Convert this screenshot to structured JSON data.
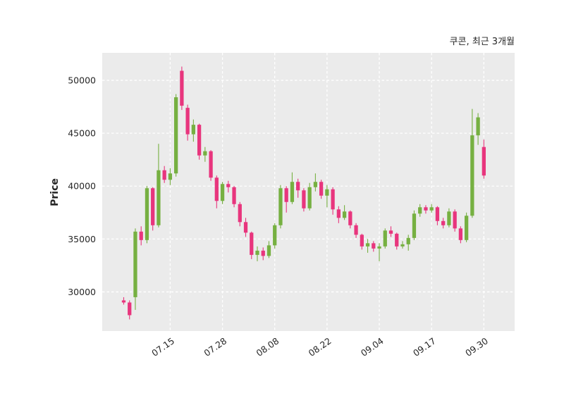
{
  "header": {
    "title": "쿠콘, 최근 3개월"
  },
  "chart_data": {
    "type": "candlestick",
    "title": "쿠콘, 최근 3개월",
    "ylabel": "Price",
    "ylim": [
      26300,
      52600
    ],
    "yticks": [
      30000,
      35000,
      40000,
      45000,
      50000
    ],
    "xtick_labels": [
      "07.15",
      "07.28",
      "08.08",
      "08.22",
      "09.04",
      "09.17",
      "09.30"
    ],
    "xtick_indices": [
      8,
      17,
      26,
      35,
      44,
      53,
      62
    ],
    "grid": true,
    "legend": "none",
    "colors": {
      "up": "#76b041",
      "down": "#e8357d",
      "plot_bg": "#ebebeb",
      "grid": "#ffffff",
      "text": "#262626"
    },
    "candle_format": [
      "open",
      "high",
      "low",
      "close"
    ],
    "candles": [
      [
        29200,
        29500,
        28800,
        29000
      ],
      [
        29000,
        29200,
        27400,
        27800
      ],
      [
        29500,
        36000,
        28300,
        35700
      ],
      [
        35700,
        36200,
        34400,
        34900
      ],
      [
        34900,
        40000,
        34600,
        39800
      ],
      [
        39800,
        39900,
        35800,
        36300
      ],
      [
        36300,
        44000,
        36100,
        41500
      ],
      [
        41500,
        41900,
        40300,
        40600
      ],
      [
        40600,
        41700,
        40100,
        41200
      ],
      [
        41200,
        48700,
        40900,
        48400
      ],
      [
        50900,
        51300,
        47200,
        47600
      ],
      [
        47400,
        47700,
        44300,
        44900
      ],
      [
        44900,
        46300,
        44200,
        45800
      ],
      [
        45800,
        45900,
        42500,
        42900
      ],
      [
        42900,
        43700,
        42300,
        43300
      ],
      [
        43300,
        43400,
        40500,
        40800
      ],
      [
        40800,
        41000,
        37900,
        38600
      ],
      [
        38600,
        40400,
        38300,
        40200
      ],
      [
        40200,
        40500,
        39400,
        39900
      ],
      [
        39900,
        40000,
        38000,
        38300
      ],
      [
        38300,
        38500,
        36200,
        36600
      ],
      [
        36600,
        37000,
        35200,
        35600
      ],
      [
        35600,
        35700,
        33100,
        33500
      ],
      [
        33500,
        34300,
        32900,
        33900
      ],
      [
        33900,
        34200,
        33000,
        33400
      ],
      [
        33400,
        34800,
        33200,
        34400
      ],
      [
        34400,
        36500,
        34100,
        36300
      ],
      [
        36300,
        40100,
        36000,
        39800
      ],
      [
        39800,
        40000,
        37500,
        38500
      ],
      [
        38500,
        41300,
        38300,
        40400
      ],
      [
        40400,
        40700,
        38900,
        39600
      ],
      [
        39600,
        39800,
        37600,
        37900
      ],
      [
        37900,
        40300,
        37700,
        39900
      ],
      [
        39900,
        41200,
        39500,
        40400
      ],
      [
        40400,
        40600,
        38800,
        39100
      ],
      [
        39100,
        40100,
        38000,
        39700
      ],
      [
        39700,
        39900,
        37300,
        37800
      ],
      [
        37800,
        38100,
        36500,
        37000
      ],
      [
        37000,
        38200,
        36800,
        37600
      ],
      [
        37600,
        37700,
        36000,
        36300
      ],
      [
        36300,
        36500,
        35100,
        35400
      ],
      [
        35400,
        35500,
        34000,
        34300
      ],
      [
        34300,
        35000,
        33700,
        34600
      ],
      [
        34600,
        34800,
        33800,
        34100
      ],
      [
        34100,
        34600,
        32900,
        34300
      ],
      [
        34300,
        36000,
        34100,
        35800
      ],
      [
        35800,
        36200,
        35200,
        35500
      ],
      [
        35500,
        35600,
        34000,
        34300
      ],
      [
        34300,
        34800,
        34100,
        34500
      ],
      [
        34500,
        35400,
        33900,
        35100
      ],
      [
        35100,
        37700,
        34900,
        37400
      ],
      [
        37400,
        38300,
        37100,
        38000
      ],
      [
        38000,
        38200,
        37400,
        37700
      ],
      [
        37700,
        38300,
        37500,
        38000
      ],
      [
        38000,
        38100,
        36300,
        36700
      ],
      [
        36700,
        37000,
        36000,
        36300
      ],
      [
        36300,
        37900,
        36100,
        37600
      ],
      [
        37600,
        37800,
        35700,
        36000
      ],
      [
        36000,
        36200,
        34600,
        34900
      ],
      [
        34900,
        37500,
        34700,
        37200
      ],
      [
        37200,
        47300,
        37000,
        44800
      ],
      [
        44800,
        46900,
        43900,
        46500
      ],
      [
        43700,
        44400,
        40700,
        41000
      ]
    ]
  }
}
